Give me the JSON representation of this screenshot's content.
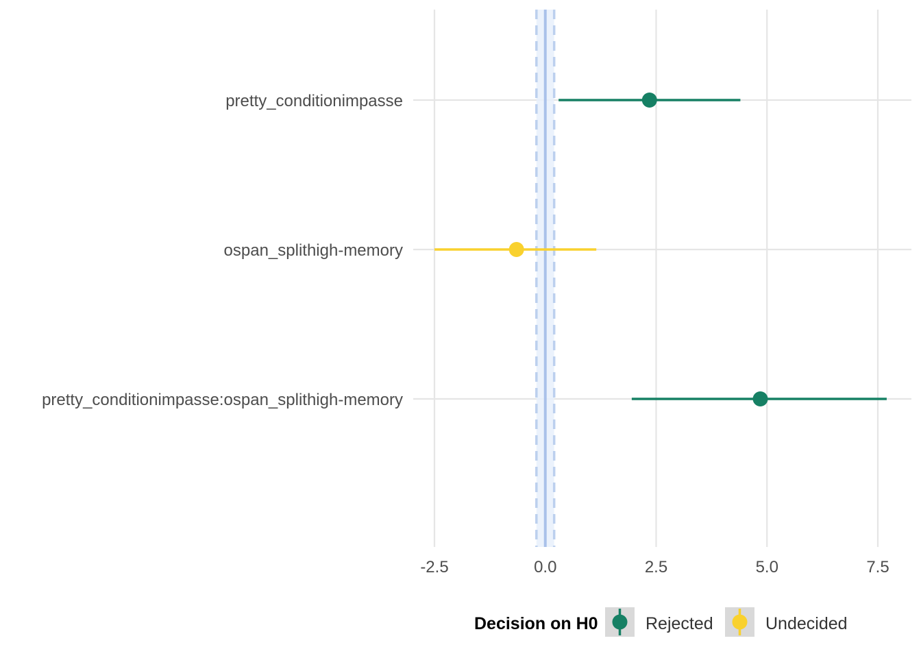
{
  "chart_data": {
    "type": "scatter",
    "subtype": "coefficient-interval-plot",
    "categories": [
      "pretty_conditionimpasse",
      "ospan_splithigh-memory",
      "pretty_conditionimpasse:ospan_splithigh-memory"
    ],
    "points": [
      {
        "term": "pretty_conditionimpasse",
        "estimate": 2.35,
        "low": 0.3,
        "high": 4.4,
        "decision": "Rejected"
      },
      {
        "term": "ospan_splithigh-memory",
        "estimate": -0.65,
        "low": -2.5,
        "high": 1.15,
        "decision": "Undecided"
      },
      {
        "term": "pretty_conditionimpasse:ospan_splithigh-memory",
        "estimate": 4.85,
        "low": 1.95,
        "high": 7.7,
        "decision": "Rejected"
      }
    ],
    "reference": {
      "zero": 0.0,
      "rope": [
        -0.2,
        0.2
      ]
    },
    "xlim": [
      -2.55,
      7.85
    ],
    "x_ticks": [
      -2.5,
      0.0,
      2.5,
      5.0,
      7.5
    ],
    "x_tick_labels": [
      "-2.5",
      "0.0",
      "2.5",
      "5.0",
      "7.5"
    ],
    "xlabel": "",
    "ylabel": "",
    "grid": true,
    "legend": {
      "title": "Decision on H0",
      "position": "bottom",
      "entries": [
        {
          "label": "Rejected",
          "color": "#168064"
        },
        {
          "label": "Undecided",
          "color": "#f9d12e"
        }
      ]
    },
    "colors": {
      "Rejected": "#168064",
      "Undecided": "#f9d12e",
      "rope_fill": "#e8f0fb",
      "rope_line": "#bcd0ee",
      "zero_line": "#a9c1ea",
      "grid": "#e5e5e5"
    }
  }
}
